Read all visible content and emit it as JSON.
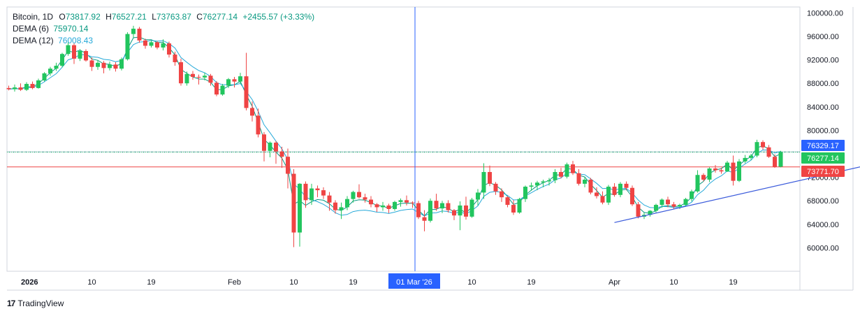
{
  "legend": {
    "symbol": "Bitcoin, 1D",
    "o_label": "O",
    "o": "73817.92",
    "h_label": "H",
    "h": "76527.21",
    "l_label": "L",
    "l": "73763.87",
    "c_label": "C",
    "c": "76277.14",
    "change": "+2455.57 (+3.33%)",
    "dema6_label": "DEMA (6)",
    "dema6_value": "75970.14",
    "dema12_label": "DEMA (12)",
    "dema12_value": "76008.43"
  },
  "brand": {
    "name": "TradingView"
  },
  "colors": {
    "up": "#22c55e",
    "down": "#ef4444",
    "dema6": "#089981",
    "dema12": "#26a9d9",
    "crosshair": "#2962ff",
    "trendline": "#3b5bdb",
    "price_line": "#ef4444",
    "h_line": "#1e6b8a"
  },
  "chart_data": {
    "type": "candlestick",
    "x_axis_labels": [
      "2026",
      "10",
      "19",
      "Feb",
      "10",
      "19",
      "01 Mar '26",
      "10",
      "19",
      "Apr",
      "10",
      "19"
    ],
    "y_axis_labels": [
      "100000.00",
      "96000.00",
      "92000.00",
      "88000.00",
      "84000.00",
      "80000.00",
      "72000.00",
      "68000.00",
      "64000.00",
      "60000.00"
    ],
    "ylim": [
      56000,
      101000
    ],
    "price_tags": [
      {
        "value": 76329.17,
        "label": "76329.17",
        "color": "#2962ff"
      },
      {
        "value": 76277.14,
        "label": "76277.14",
        "color": "#22c55e"
      },
      {
        "value": 73771.7,
        "label": "73771.70",
        "color": "#ef4444"
      }
    ],
    "crosshair_label": "01 Mar '26",
    "trendline": [
      [
        -28,
        64300
      ],
      [
        27,
        76900
      ]
    ],
    "candles": [
      [
        87200,
        87600,
        86800,
        87000
      ],
      [
        87000,
        87800,
        86600,
        87300
      ],
      [
        87300,
        88000,
        86700,
        86900
      ],
      [
        86900,
        88200,
        86700,
        87900
      ],
      [
        87900,
        88300,
        87000,
        87200
      ],
      [
        87200,
        88800,
        87100,
        88500
      ],
      [
        88500,
        89900,
        88300,
        89700
      ],
      [
        89700,
        90800,
        89300,
        90500
      ],
      [
        90500,
        91500,
        90100,
        91000
      ],
      [
        91000,
        93200,
        90700,
        93000
      ],
      [
        93000,
        95000,
        92700,
        94500
      ],
      [
        94500,
        94800,
        91300,
        92200
      ],
      [
        92200,
        93800,
        91800,
        93500
      ],
      [
        93500,
        93800,
        91700,
        91900
      ],
      [
        91900,
        92400,
        90100,
        90800
      ],
      [
        90800,
        92000,
        90300,
        91500
      ],
      [
        91500,
        91800,
        89700,
        90600
      ],
      [
        90600,
        91700,
        90200,
        91200
      ],
      [
        91200,
        91600,
        90000,
        90500
      ],
      [
        90500,
        92400,
        90200,
        92100
      ],
      [
        92100,
        96700,
        91900,
        96400
      ],
      [
        96400,
        97800,
        95800,
        97300
      ],
      [
        97300,
        97600,
        94900,
        95300
      ],
      [
        95300,
        95600,
        93900,
        94400
      ],
      [
        94400,
        95300,
        94100,
        95000
      ],
      [
        95000,
        95200,
        93800,
        94100
      ],
      [
        94100,
        95500,
        93600,
        94800
      ],
      [
        94800,
        95100,
        92400,
        92900
      ],
      [
        92900,
        93400,
        91000,
        91600
      ],
      [
        91600,
        92200,
        87600,
        88000
      ],
      [
        88000,
        90000,
        87600,
        89600
      ],
      [
        89600,
        90100,
        88600,
        89100
      ],
      [
        89100,
        89500,
        87800,
        89000
      ],
      [
        89000,
        89800,
        88500,
        89300
      ],
      [
        89300,
        89600,
        87600,
        88100
      ],
      [
        88100,
        88400,
        85800,
        86100
      ],
      [
        86100,
        87900,
        85900,
        87600
      ],
      [
        87600,
        88900,
        87200,
        88700
      ],
      [
        88700,
        89100,
        87300,
        88300
      ],
      [
        88300,
        89800,
        87900,
        89200
      ],
      [
        89200,
        93200,
        83400,
        83800
      ],
      [
        83800,
        84900,
        81500,
        82500
      ],
      [
        82500,
        83700,
        78800,
        79300
      ],
      [
        79300,
        79700,
        74700,
        76500
      ],
      [
        76500,
        78100,
        75400,
        77900
      ],
      [
        77900,
        78200,
        74300,
        76400
      ],
      [
        76400,
        77200,
        73600,
        75500
      ],
      [
        75500,
        76900,
        70100,
        72600
      ],
      [
        72600,
        73400,
        60100,
        62600
      ],
      [
        62600,
        71000,
        60200,
        70900
      ],
      [
        70900,
        71300,
        66800,
        68100
      ],
      [
        68100,
        70900,
        67300,
        70100
      ],
      [
        70100,
        70600,
        68600,
        69800
      ],
      [
        69800,
        70300,
        68300,
        68900
      ],
      [
        68900,
        69500,
        66300,
        67700
      ],
      [
        67700,
        68100,
        65800,
        66400
      ],
      [
        66400,
        67700,
        64900,
        66900
      ],
      [
        66900,
        68800,
        66400,
        68300
      ],
      [
        68300,
        69700,
        67700,
        69500
      ],
      [
        69500,
        70800,
        68400,
        68600
      ],
      [
        68600,
        69200,
        67700,
        68200
      ],
      [
        68200,
        68800,
        66900,
        67400
      ],
      [
        67400,
        67600,
        66100,
        66900
      ],
      [
        66900,
        67800,
        66300,
        67200
      ],
      [
        67200,
        67500,
        65900,
        66600
      ],
      [
        66600,
        68000,
        66300,
        67800
      ],
      [
        67800,
        68400,
        67000,
        68100
      ],
      [
        68100,
        68900,
        67200,
        67700
      ],
      [
        67700,
        67900,
        66800,
        67600
      ],
      [
        67600,
        68000,
        64900,
        65200
      ],
      [
        65200,
        66400,
        62800,
        64600
      ],
      [
        64600,
        68400,
        64300,
        68000
      ],
      [
        68000,
        69200,
        66300,
        66700
      ],
      [
        66700,
        68000,
        65900,
        67600
      ],
      [
        67600,
        68100,
        66000,
        66400
      ],
      [
        66400,
        66600,
        64700,
        65500
      ],
      [
        65500,
        67900,
        63000,
        67200
      ],
      [
        67200,
        68700,
        64800,
        65300
      ],
      [
        65300,
        68500,
        65100,
        68200
      ],
      [
        68200,
        70000,
        67200,
        69400
      ],
      [
        69400,
        74400,
        68300,
        72900
      ],
      [
        72900,
        74000,
        70500,
        70900
      ],
      [
        70900,
        71200,
        69000,
        69600
      ],
      [
        69600,
        70100,
        67800,
        68600
      ],
      [
        68600,
        68800,
        66900,
        67300
      ],
      [
        67300,
        68100,
        65600,
        66000
      ],
      [
        66000,
        68500,
        65800,
        68300
      ],
      [
        68300,
        70600,
        67800,
        70400
      ],
      [
        70400,
        71100,
        69700,
        70600
      ],
      [
        70600,
        71400,
        69800,
        71100
      ],
      [
        71100,
        71600,
        70300,
        71300
      ],
      [
        71300,
        71900,
        70600,
        71500
      ],
      [
        71500,
        73400,
        71000,
        72900
      ],
      [
        72900,
        73600,
        71800,
        72100
      ],
      [
        72100,
        74500,
        71800,
        74200
      ],
      [
        74200,
        74800,
        72400,
        72700
      ],
      [
        72700,
        73400,
        70600,
        70900
      ],
      [
        70900,
        72100,
        70300,
        71600
      ],
      [
        71600,
        71900,
        69100,
        69400
      ],
      [
        69400,
        70300,
        68400,
        68800
      ],
      [
        68800,
        69600,
        67400,
        67700
      ],
      [
        67700,
        70700,
        67300,
        70400
      ],
      [
        70400,
        71000,
        68700,
        69000
      ],
      [
        69000,
        71200,
        68600,
        70900
      ],
      [
        70900,
        71300,
        69800,
        70200
      ],
      [
        70200,
        70600,
        67100,
        67400
      ],
      [
        67400,
        67800,
        65000,
        65300
      ],
      [
        65300,
        66000,
        64900,
        65600
      ],
      [
        65600,
        66400,
        65300,
        66300
      ],
      [
        66300,
        67500,
        66000,
        67300
      ],
      [
        67300,
        68400,
        66800,
        68200
      ],
      [
        68200,
        68700,
        66900,
        67400
      ],
      [
        67400,
        67800,
        66600,
        67000
      ],
      [
        67000,
        67500,
        66600,
        67300
      ],
      [
        67300,
        68500,
        67100,
        68300
      ],
      [
        68300,
        69900,
        67900,
        69600
      ],
      [
        69600,
        73200,
        69400,
        72400
      ],
      [
        72400,
        72700,
        71300,
        71600
      ],
      [
        71600,
        73700,
        71200,
        73500
      ],
      [
        73500,
        74100,
        72800,
        73200
      ],
      [
        73200,
        73600,
        72600,
        73000
      ],
      [
        73000,
        74800,
        72900,
        74500
      ],
      [
        74500,
        75700,
        70600,
        71400
      ],
      [
        71400,
        75100,
        71200,
        74700
      ],
      [
        74700,
        75800,
        74400,
        75300
      ],
      [
        75300,
        76000,
        74900,
        75700
      ],
      [
        75700,
        78400,
        75400,
        78000
      ],
      [
        78000,
        78300,
        76700,
        77100
      ],
      [
        77100,
        77500,
        75300,
        75500
      ],
      [
        75500,
        75900,
        73600,
        73800
      ],
      [
        73800,
        76500,
        73700,
        76300
      ]
    ]
  }
}
